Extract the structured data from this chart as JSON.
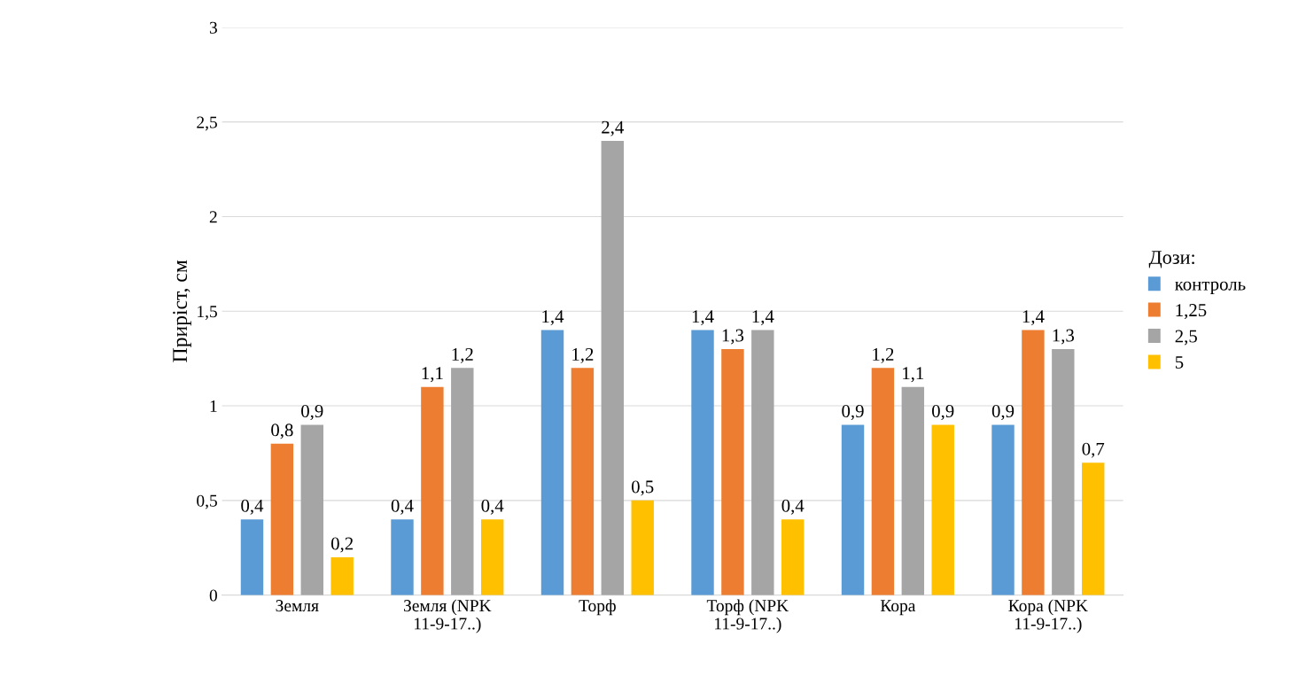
{
  "chart_data": {
    "type": "bar",
    "ylabel": "Приріст, см",
    "legend_title": "Дози:",
    "categories": [
      "Земля",
      "Земля (NPK\n11-9-17..)",
      "Торф",
      "Торф (NPK\n11-9-17..)",
      "Кора",
      "Кора (NPK\n11-9-17..)"
    ],
    "series": [
      {
        "name": "контроль",
        "color": "#5b9bd5",
        "values": [
          0.4,
          0.4,
          1.4,
          1.4,
          0.9,
          0.9
        ],
        "value_labels": [
          "0,4",
          "0,4",
          "1,4",
          "1,4",
          "0,9",
          "0,9"
        ]
      },
      {
        "name": "1,25",
        "color": "#ed7d31",
        "values": [
          0.8,
          1.1,
          1.2,
          1.3,
          1.2,
          1.4
        ],
        "value_labels": [
          "0,8",
          "1,1",
          "1,2",
          "1,3",
          "1,2",
          "1,4"
        ]
      },
      {
        "name": "2,5",
        "color": "#a5a5a5",
        "values": [
          0.9,
          1.2,
          2.4,
          1.4,
          1.1,
          1.3
        ],
        "value_labels": [
          "0,9",
          "1,2",
          "2,4",
          "1,4",
          "1,1",
          "1,3"
        ]
      },
      {
        "name": "5",
        "color": "#ffc000",
        "values": [
          0.2,
          0.4,
          0.5,
          0.4,
          0.9,
          0.7
        ],
        "value_labels": [
          "0,2",
          "0,4",
          "0,5",
          "0,4",
          "0,9",
          "0,7"
        ]
      }
    ],
    "ylim": [
      0,
      3
    ],
    "yticks": [
      0,
      {
        "value": 0.5,
        "label": "0,5"
      },
      1,
      {
        "value": 1.5,
        "label": "1,5"
      },
      2,
      {
        "value": 2.5,
        "label": "2,5"
      },
      3
    ],
    "grid": "y",
    "legend": "right"
  }
}
